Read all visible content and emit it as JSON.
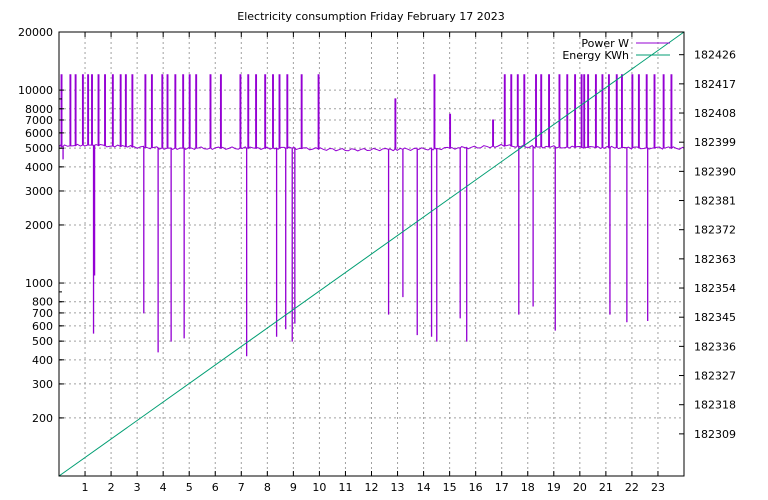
{
  "chart_data": {
    "type": "line",
    "title": "Electricity consumption Friday February 17 2023",
    "x": {
      "label": "",
      "range": [
        0,
        24
      ],
      "ticks": [
        "1",
        "2",
        "3",
        "4",
        "5",
        "6",
        "7",
        "8",
        "9",
        "10",
        "11",
        "12",
        "13",
        "14",
        "15",
        "16",
        "17",
        "18",
        "19",
        "20",
        "21",
        "22",
        "23"
      ]
    },
    "y_left": {
      "label": "",
      "scale": "log",
      "range": [
        100,
        20000
      ],
      "ticks": [
        {
          "value": 200,
          "label": "200"
        },
        {
          "value": 300,
          "label": "300"
        },
        {
          "value": 400,
          "label": "400"
        },
        {
          "value": 500,
          "label": "500"
        },
        {
          "value": 600,
          "label": "600"
        },
        {
          "value": 700,
          "label": "700"
        },
        {
          "value": 800,
          "label": "800"
        },
        {
          "value": 1000,
          "label": "1000"
        },
        {
          "value": 2000,
          "label": "2000"
        },
        {
          "value": 3000,
          "label": "3000"
        },
        {
          "value": 4000,
          "label": "4000"
        },
        {
          "value": 5000,
          "label": "5000"
        },
        {
          "value": 6000,
          "label": "6000"
        },
        {
          "value": 7000,
          "label": "7000"
        },
        {
          "value": 8000,
          "label": "8000"
        },
        {
          "value": 10000,
          "label": "10000"
        },
        {
          "value": 20000,
          "label": "20000"
        }
      ]
    },
    "y_right": {
      "label": "",
      "scale": "linear",
      "range": [
        182296,
        182433
      ],
      "ticks": [
        {
          "value": 182309,
          "label": "182309"
        },
        {
          "value": 182318,
          "label": "182318"
        },
        {
          "value": 182327,
          "label": "182327"
        },
        {
          "value": 182336,
          "label": "182336"
        },
        {
          "value": 182345,
          "label": "182345"
        },
        {
          "value": 182354,
          "label": "182354"
        },
        {
          "value": 182363,
          "label": "182363"
        },
        {
          "value": 182372,
          "label": "182372"
        },
        {
          "value": 182381,
          "label": "182381"
        },
        {
          "value": 182390,
          "label": "182390"
        },
        {
          "value": 182399,
          "label": "182399"
        },
        {
          "value": 182408,
          "label": "182408"
        },
        {
          "value": 182417,
          "label": "182417"
        },
        {
          "value": 182426,
          "label": "182426"
        }
      ]
    },
    "grid": true,
    "legend_position": "top-right",
    "series": [
      {
        "name": "Power W",
        "axis": "left",
        "color": "#9400d3",
        "baseline": 5000,
        "baseline_drift": [
          [
            0,
            5100
          ],
          [
            1,
            5200
          ],
          [
            4,
            5000
          ],
          [
            6,
            5000
          ],
          [
            9,
            5000
          ],
          [
            11,
            4900
          ],
          [
            14,
            4950
          ],
          [
            16,
            5050
          ],
          [
            17,
            5150
          ],
          [
            18,
            5100
          ],
          [
            20,
            5050
          ],
          [
            24,
            5000
          ]
        ],
        "spikes": [
          {
            "x": 0.08,
            "value": 12000
          },
          {
            "x": 0.42,
            "value": 12000
          },
          {
            "x": 0.62,
            "value": 12000
          },
          {
            "x": 0.9,
            "value": 12000
          },
          {
            "x": 1.1,
            "value": 12000
          },
          {
            "x": 1.25,
            "value": 12000
          },
          {
            "x": 1.5,
            "value": 12000
          },
          {
            "x": 1.75,
            "value": 12000
          },
          {
            "x": 2.05,
            "value": 12000
          },
          {
            "x": 2.35,
            "value": 12000
          },
          {
            "x": 2.55,
            "value": 12000
          },
          {
            "x": 2.8,
            "value": 12000
          },
          {
            "x": 3.3,
            "value": 12000
          },
          {
            "x": 3.55,
            "value": 12000
          },
          {
            "x": 3.95,
            "value": 12000
          },
          {
            "x": 4.15,
            "value": 12000
          },
          {
            "x": 4.45,
            "value": 12000
          },
          {
            "x": 4.75,
            "value": 12000
          },
          {
            "x": 5.0,
            "value": 12000
          },
          {
            "x": 5.25,
            "value": 12000
          },
          {
            "x": 5.8,
            "value": 12000
          },
          {
            "x": 6.2,
            "value": 12000
          },
          {
            "x": 6.95,
            "value": 12000
          },
          {
            "x": 7.25,
            "value": 12000
          },
          {
            "x": 7.55,
            "value": 12000
          },
          {
            "x": 7.9,
            "value": 12000
          },
          {
            "x": 8.2,
            "value": 12000
          },
          {
            "x": 8.45,
            "value": 12000
          },
          {
            "x": 8.75,
            "value": 12000
          },
          {
            "x": 9.3,
            "value": 12000
          },
          {
            "x": 9.95,
            "value": 12000
          },
          {
            "x": 12.9,
            "value": 9000
          },
          {
            "x": 14.4,
            "value": 12000
          },
          {
            "x": 15.0,
            "value": 7500
          },
          {
            "x": 16.65,
            "value": 7000
          },
          {
            "x": 17.1,
            "value": 12000
          },
          {
            "x": 17.35,
            "value": 12000
          },
          {
            "x": 17.6,
            "value": 12000
          },
          {
            "x": 17.85,
            "value": 12000
          },
          {
            "x": 18.3,
            "value": 12000
          },
          {
            "x": 18.5,
            "value": 12000
          },
          {
            "x": 18.8,
            "value": 12000
          },
          {
            "x": 19.2,
            "value": 12000
          },
          {
            "x": 19.5,
            "value": 12000
          },
          {
            "x": 19.8,
            "value": 12000
          },
          {
            "x": 20.05,
            "value": 12000
          },
          {
            "x": 20.15,
            "value": 12000
          },
          {
            "x": 20.3,
            "value": 12000
          },
          {
            "x": 20.6,
            "value": 12000
          },
          {
            "x": 20.85,
            "value": 12000
          },
          {
            "x": 21.1,
            "value": 12000
          },
          {
            "x": 21.4,
            "value": 12000
          },
          {
            "x": 21.6,
            "value": 12000
          },
          {
            "x": 22.0,
            "value": 12000
          },
          {
            "x": 22.25,
            "value": 12000
          },
          {
            "x": 22.55,
            "value": 12000
          },
          {
            "x": 22.85,
            "value": 12000
          },
          {
            "x": 23.2,
            "value": 12000
          },
          {
            "x": 23.5,
            "value": 12000
          }
        ],
        "dips": [
          {
            "x": 0.15,
            "value": 4400
          },
          {
            "x": 0.45,
            "value": 4400
          },
          {
            "x": 1.32,
            "value": 550
          },
          {
            "x": 1.36,
            "value": 1100
          },
          {
            "x": 3.25,
            "value": 700
          },
          {
            "x": 3.8,
            "value": 440
          },
          {
            "x": 4.3,
            "value": 500
          },
          {
            "x": 4.8,
            "value": 520
          },
          {
            "x": 6.2,
            "value": 530
          },
          {
            "x": 7.2,
            "value": 420
          },
          {
            "x": 8.35,
            "value": 530
          },
          {
            "x": 8.7,
            "value": 580
          },
          {
            "x": 8.95,
            "value": 500
          },
          {
            "x": 9.05,
            "value": 620
          },
          {
            "x": 9.95,
            "value": 510
          },
          {
            "x": 12.65,
            "value": 690
          },
          {
            "x": 13.2,
            "value": 850
          },
          {
            "x": 13.75,
            "value": 540
          },
          {
            "x": 14.3,
            "value": 530
          },
          {
            "x": 14.5,
            "value": 500
          },
          {
            "x": 15.4,
            "value": 660
          },
          {
            "x": 15.65,
            "value": 500
          },
          {
            "x": 17.65,
            "value": 690
          },
          {
            "x": 18.2,
            "value": 760
          },
          {
            "x": 19.05,
            "value": 570
          },
          {
            "x": 21.15,
            "value": 690
          },
          {
            "x": 21.8,
            "value": 630
          },
          {
            "x": 22.6,
            "value": 640
          },
          {
            "x": 23.2,
            "value": 540
          }
        ]
      },
      {
        "name": "Energy KWh",
        "axis": "right",
        "color": "#009e73",
        "x": [
          0,
          24
        ],
        "values": [
          182296,
          182433
        ]
      }
    ]
  }
}
